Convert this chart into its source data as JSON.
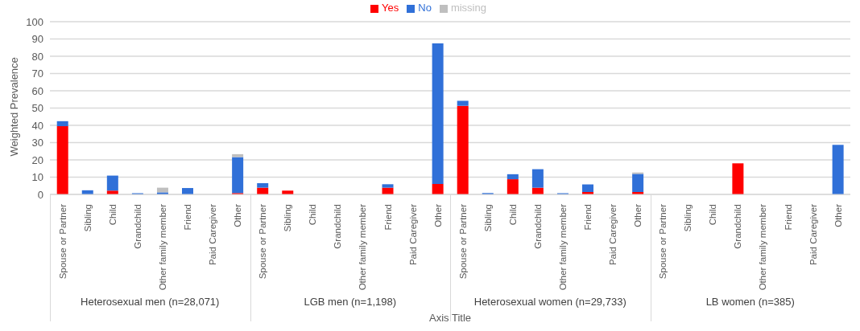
{
  "chart_data": {
    "type": "bar",
    "stacked": true,
    "ylabel": "Weighted Prevalence",
    "xlabel": "Axis Title",
    "categories": [
      "Spouse or Partner",
      "Sibling",
      "Child",
      "Grandchild",
      "Other family member",
      "Friend",
      "Paid Caregiver",
      "Other",
      "Spouse or Partner",
      "Sibling",
      "Child",
      "Grandchild",
      "Other family member",
      "Friend",
      "Paid Caregiver",
      "Other",
      "Spouse or Partner",
      "Sibling",
      "Child",
      "Grandchild",
      "Other family member",
      "Friend",
      "Paid Caregiver",
      "Other",
      "Spouse or Partner",
      "Sibling",
      "Child",
      "Grandchild",
      "Other family member",
      "Friend",
      "Paid Caregiver",
      "Other"
    ],
    "series": [
      {
        "name": "Yes",
        "color": "#ff0000",
        "values": [
          39.5,
          0,
          2.2,
          0,
          0,
          0,
          0,
          0.8,
          3.9,
          2.2,
          0,
          0,
          0,
          3.9,
          0,
          6.1,
          51.3,
          0,
          8.8,
          3.9,
          0,
          1.4,
          0,
          1.4,
          0,
          0,
          0,
          18,
          0,
          0,
          0,
          0
        ]
      },
      {
        "name": "No",
        "color": "#3070d8",
        "values": [
          2.9,
          2.4,
          8.7,
          0.7,
          1.2,
          3.7,
          0,
          20.8,
          2.6,
          0,
          0,
          0,
          0,
          2,
          0,
          81.3,
          2.9,
          0.8,
          2.9,
          10.7,
          0.7,
          4.4,
          0,
          10.5,
          0,
          0,
          0,
          0,
          0,
          0,
          0,
          28.7
        ]
      },
      {
        "name": "missing",
        "color": "#bfbfbf",
        "values": [
          0,
          0,
          0,
          0,
          2.7,
          0,
          0,
          1.7,
          0,
          0,
          0,
          0,
          0,
          0,
          0,
          0,
          0,
          0,
          0,
          0,
          0,
          0,
          0,
          0.8,
          0,
          0,
          0,
          0,
          0,
          0,
          0,
          0
        ]
      }
    ],
    "annotations": [
      "Heterosexual men (n=28,071)",
      "LGB men (n=1,198)",
      "Heterosexual women (n=29,733)",
      "LB women (n=385)"
    ],
    "ylim": [
      0,
      100
    ],
    "yticks": [
      0,
      10,
      20,
      30,
      40,
      50,
      60,
      70,
      80,
      90,
      100
    ],
    "grid": "y",
    "legend": "top"
  }
}
